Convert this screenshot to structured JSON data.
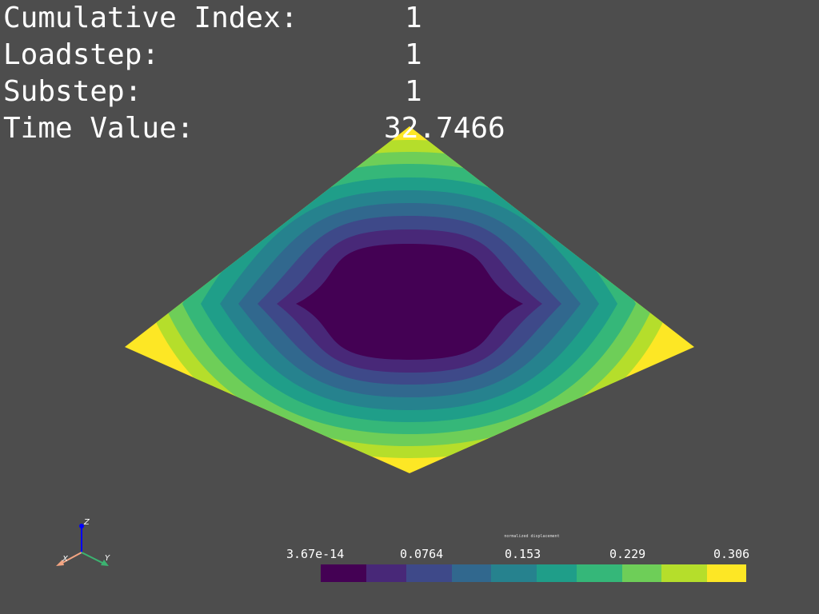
{
  "info": {
    "cumulative_index_label": "Cumulative Index:",
    "cumulative_index_value": "1",
    "loadstep_label": "Loadstep:",
    "loadstep_value": "1",
    "substep_label": "Substep:",
    "substep_value": "1",
    "time_value_label": "Time Value:",
    "time_value_value": "32.7466"
  },
  "colorbar": {
    "title": "normalized displacement",
    "ticks": [
      "3.67e-14",
      "0.0764",
      "0.153",
      "0.229",
      "0.306"
    ],
    "colors": [
      "#440154",
      "#482878",
      "#3e4989",
      "#31688e",
      "#26828e",
      "#1f9e89",
      "#35b779",
      "#6ece58",
      "#b5de2b",
      "#fde725"
    ]
  },
  "axes": {
    "x": "X",
    "y": "Y",
    "z": "Z"
  },
  "colors": {
    "background": "#4d4d4d",
    "text": "#ffffff"
  }
}
